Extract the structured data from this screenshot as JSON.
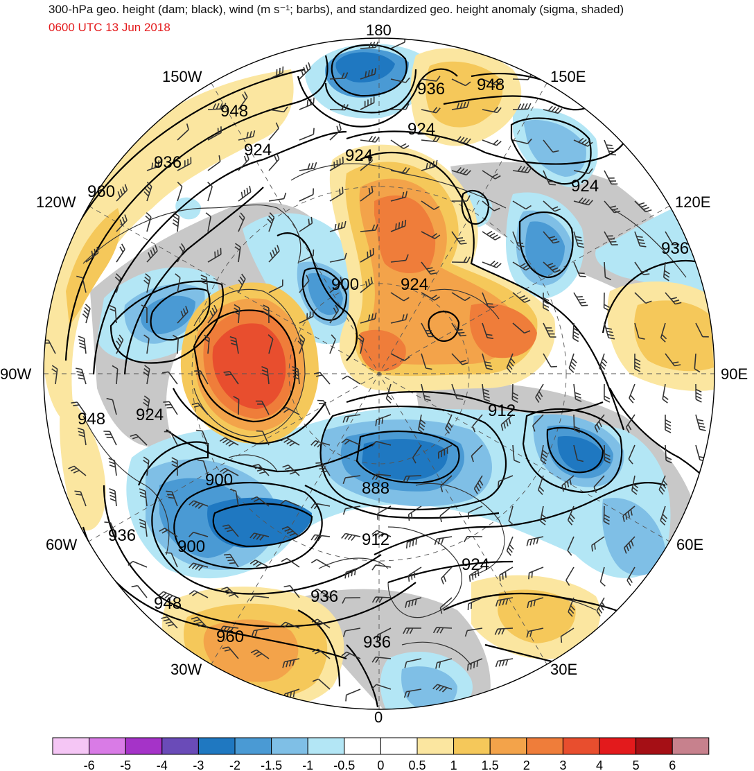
{
  "header": {
    "title": "300-hPa geo. height (dam; black), wind (m s⁻¹; barbs), and standardized geo. height anomaly (sigma, shaded)",
    "valid_time": "0600 UTC 13 Jun 2018"
  },
  "longitude_labels": [
    {
      "id": "180",
      "text": "180"
    },
    {
      "id": "150E",
      "text": "150E"
    },
    {
      "id": "120E",
      "text": "120E"
    },
    {
      "id": "90E",
      "text": "90E"
    },
    {
      "id": "60E",
      "text": "60E"
    },
    {
      "id": "30E",
      "text": "30E"
    },
    {
      "id": "0",
      "text": "0"
    },
    {
      "id": "30W",
      "text": "30W"
    },
    {
      "id": "60W",
      "text": "60W"
    },
    {
      "id": "90W",
      "text": "90W"
    },
    {
      "id": "120W",
      "text": "120W"
    },
    {
      "id": "150W",
      "text": "150W"
    }
  ],
  "contour_labels": [
    {
      "text": "948"
    },
    {
      "text": "936"
    },
    {
      "text": "924"
    },
    {
      "text": "960"
    },
    {
      "text": "948"
    },
    {
      "text": "936"
    },
    {
      "text": "924"
    },
    {
      "text": "924"
    },
    {
      "text": "924"
    },
    {
      "text": "936"
    },
    {
      "text": "900"
    },
    {
      "text": "924"
    },
    {
      "text": "948"
    },
    {
      "text": "924"
    },
    {
      "text": "912"
    },
    {
      "text": "900"
    },
    {
      "text": "888"
    },
    {
      "text": "936"
    },
    {
      "text": "900"
    },
    {
      "text": "912"
    },
    {
      "text": "924"
    },
    {
      "text": "948"
    },
    {
      "text": "936"
    },
    {
      "text": "960"
    },
    {
      "text": "936"
    }
  ],
  "colorbar": {
    "colors": [
      "#f5c6f5",
      "#d97be6",
      "#a533c8",
      "#6a4bb8",
      "#1f78c1",
      "#4a9ad4",
      "#7fbfe6",
      "#b3e6f5",
      "#ffffff",
      "#ffffff",
      "#fbe6a0",
      "#f5c85a",
      "#f3a34a",
      "#ef7d3a",
      "#e84e2e",
      "#e31a1c",
      "#a50f15",
      "#c7818d"
    ],
    "ticks": [
      "-6",
      "-5",
      "-4",
      "-3",
      "-2",
      "-1.5",
      "-1",
      "-0.5",
      "0",
      "0.5",
      "1",
      "1.5",
      "2",
      "3",
      "4",
      "5",
      "6"
    ]
  },
  "shading_colors": {
    "neg_05": "#b3e6f5",
    "neg_1": "#7fbfe6",
    "neg_15": "#4a9ad4",
    "neg_2": "#1f78c1",
    "pos_05": "#fbe6a0",
    "pos_1": "#f5c85a",
    "pos_15": "#f3a34a",
    "pos_2": "#ef7d3a",
    "pos_3": "#e84e2e",
    "terrain": "#c8c8c8"
  }
}
